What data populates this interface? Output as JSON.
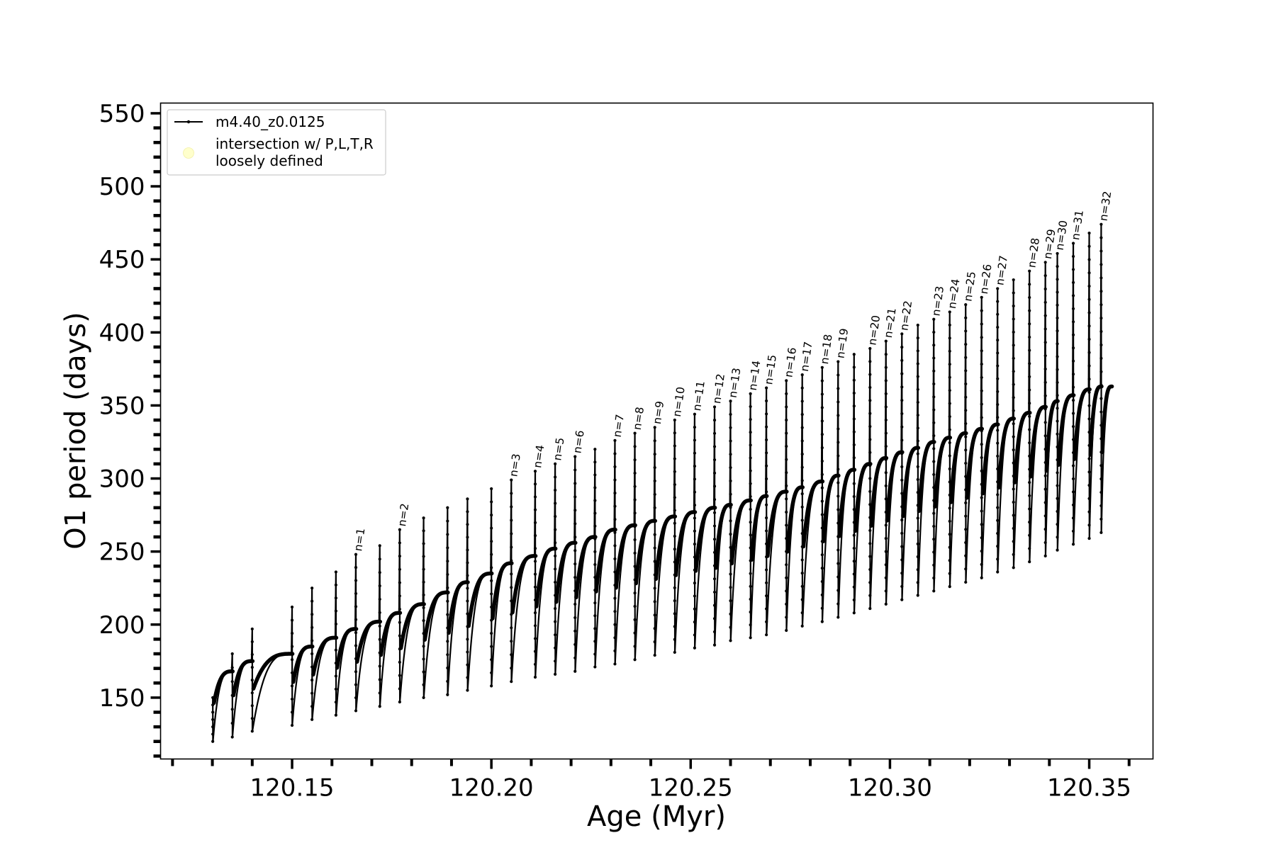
{
  "chart_data": {
    "type": "line",
    "title": "",
    "xlabel": "Age (Myr)",
    "ylabel": "O1 period (days)",
    "xlim": [
      120.117,
      120.366
    ],
    "ylim": [
      108,
      557
    ],
    "xticks": [
      120.15,
      120.2,
      120.25,
      120.3,
      120.35
    ],
    "xtick_labels": [
      "120.15",
      "120.20",
      "120.25",
      "120.30",
      "120.35"
    ],
    "yticks": [
      150,
      200,
      250,
      300,
      350,
      400,
      450,
      500,
      550
    ],
    "ytick_labels": [
      "150",
      "200",
      "250",
      "300",
      "350",
      "400",
      "450",
      "500",
      "550"
    ],
    "grid": false,
    "legend_position": "top-left",
    "legend": [
      {
        "label": "m4.40_z0.0125",
        "marker": "line-with-dots",
        "color": "#000000"
      },
      {
        "label": "intersection w/ P,L,T,R\nloosely defined",
        "label_lines": [
          "intersection w/ P,L,T,R",
          "loosely defined"
        ],
        "marker": "circle",
        "color": "#ffffcc"
      }
    ],
    "series": [
      {
        "name": "m4.40_z0.0125",
        "color": "#000000",
        "description_of_shape": "repeated loops: after each drop the period rises along a concave arc to a plateau, then a vertical spike (up to peak, down to trough) before the next loop",
        "pulses": [
          {
            "x": 120.1301,
            "top": 150,
            "bottom": 120,
            "plateau": 162
          },
          {
            "x": 120.135,
            "top": 180,
            "bottom": 123,
            "plateau": 168
          },
          {
            "x": 120.14,
            "top": 197,
            "bottom": 127,
            "plateau": 175
          },
          {
            "x": 120.15,
            "top": 212,
            "bottom": 131,
            "plateau": 180
          },
          {
            "x": 120.155,
            "top": 225,
            "bottom": 135,
            "plateau": 185
          },
          {
            "x": 120.161,
            "top": 236,
            "bottom": 138,
            "plateau": 191
          },
          {
            "x": 120.166,
            "top": 248,
            "bottom": 141,
            "plateau": 197,
            "label": "n=1"
          },
          {
            "x": 120.172,
            "top": 254,
            "bottom": 144,
            "plateau": 202
          },
          {
            "x": 120.177,
            "top": 265,
            "bottom": 147,
            "plateau": 208,
            "label": "n=2"
          },
          {
            "x": 120.183,
            "top": 273,
            "bottom": 150,
            "plateau": 214
          },
          {
            "x": 120.189,
            "top": 280,
            "bottom": 152,
            "plateau": 222
          },
          {
            "x": 120.194,
            "top": 286,
            "bottom": 155,
            "plateau": 229
          },
          {
            "x": 120.2,
            "top": 293,
            "bottom": 158,
            "plateau": 235
          },
          {
            "x": 120.205,
            "top": 299,
            "bottom": 161,
            "plateau": 242,
            "label": "n=3"
          },
          {
            "x": 120.211,
            "top": 305,
            "bottom": 164,
            "plateau": 247,
            "label": "n=4"
          },
          {
            "x": 120.216,
            "top": 310,
            "bottom": 166,
            "plateau": 252,
            "label": "n=5"
          },
          {
            "x": 120.221,
            "top": 315,
            "bottom": 168,
            "plateau": 256,
            "label": "n=6"
          },
          {
            "x": 120.226,
            "top": 320,
            "bottom": 171,
            "plateau": 260
          },
          {
            "x": 120.231,
            "top": 326,
            "bottom": 173,
            "plateau": 265,
            "label": "n=7"
          },
          {
            "x": 120.236,
            "top": 331,
            "bottom": 176,
            "plateau": 268,
            "label": "n=8"
          },
          {
            "x": 120.241,
            "top": 335,
            "bottom": 179,
            "plateau": 271,
            "label": "n=9"
          },
          {
            "x": 120.246,
            "top": 340,
            "bottom": 181,
            "plateau": 274,
            "label": "n=10"
          },
          {
            "x": 120.251,
            "top": 344,
            "bottom": 184,
            "plateau": 277,
            "label": "n=11"
          },
          {
            "x": 120.256,
            "top": 349,
            "bottom": 186,
            "plateau": 280,
            "label": "n=12"
          },
          {
            "x": 120.26,
            "top": 353,
            "bottom": 189,
            "plateau": 282,
            "label": "n=13"
          },
          {
            "x": 120.265,
            "top": 358,
            "bottom": 191,
            "plateau": 285,
            "label": "n=14"
          },
          {
            "x": 120.269,
            "top": 362,
            "bottom": 193,
            "plateau": 288,
            "label": "n=15"
          },
          {
            "x": 120.274,
            "top": 367,
            "bottom": 196,
            "plateau": 291,
            "label": "n=16"
          },
          {
            "x": 120.278,
            "top": 371,
            "bottom": 199,
            "plateau": 294,
            "label": "n=17"
          },
          {
            "x": 120.283,
            "top": 376,
            "bottom": 202,
            "plateau": 298,
            "label": "n=18"
          },
          {
            "x": 120.287,
            "top": 380,
            "bottom": 205,
            "plateau": 302,
            "label": "n=19"
          },
          {
            "x": 120.291,
            "top": 385,
            "bottom": 208,
            "plateau": 306
          },
          {
            "x": 120.295,
            "top": 389,
            "bottom": 211,
            "plateau": 310,
            "label": "n=20"
          },
          {
            "x": 120.299,
            "top": 394,
            "bottom": 214,
            "plateau": 314,
            "label": "n=21"
          },
          {
            "x": 120.303,
            "top": 399,
            "bottom": 217,
            "plateau": 318,
            "label": "n=22"
          },
          {
            "x": 120.307,
            "top": 405,
            "bottom": 220,
            "plateau": 321
          },
          {
            "x": 120.311,
            "top": 409,
            "bottom": 223,
            "plateau": 325,
            "label": "n=23"
          },
          {
            "x": 120.315,
            "top": 414,
            "bottom": 226,
            "plateau": 328,
            "label": "n=24"
          },
          {
            "x": 120.319,
            "top": 419,
            "bottom": 229,
            "plateau": 331,
            "label": "n=25"
          },
          {
            "x": 120.323,
            "top": 424,
            "bottom": 232,
            "plateau": 334,
            "label": "n=26"
          },
          {
            "x": 120.327,
            "top": 430,
            "bottom": 236,
            "plateau": 337,
            "label": "n=27"
          },
          {
            "x": 120.331,
            "top": 436,
            "bottom": 239,
            "plateau": 341
          },
          {
            "x": 120.335,
            "top": 442,
            "bottom": 243,
            "plateau": 345,
            "label": "n=28"
          },
          {
            "x": 120.339,
            "top": 448,
            "bottom": 247,
            "plateau": 349,
            "label": "n=29"
          },
          {
            "x": 120.342,
            "top": 454,
            "bottom": 251,
            "plateau": 353,
            "label": "n=30"
          },
          {
            "x": 120.346,
            "top": 461,
            "bottom": 255,
            "plateau": 357,
            "label": "n=31"
          },
          {
            "x": 120.35,
            "top": 468,
            "bottom": 259,
            "plateau": 361
          },
          {
            "x": 120.353,
            "top": 474,
            "bottom": 263,
            "plateau": 363,
            "label": "n=32"
          }
        ],
        "end": {
          "x": 120.3556,
          "y": 363
        }
      }
    ]
  }
}
